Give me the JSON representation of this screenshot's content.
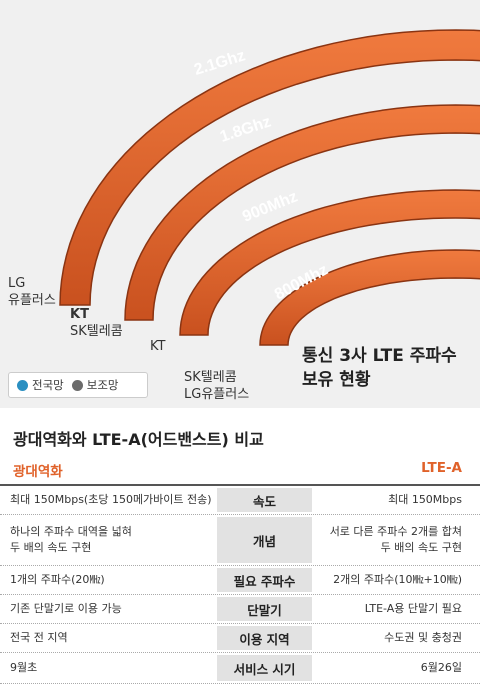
{
  "infographic": {
    "title_line1": "통신 3사 LTE 주파수",
    "title_line2": "보유 현황",
    "bands": [
      {
        "freq": "2.1Ghz",
        "owners": [
          {
            "text": "LG",
            "color": "gray"
          },
          {
            "text": "유플러스",
            "color": "gray"
          }
        ]
      },
      {
        "freq": "1.8Ghz",
        "owners": [
          {
            "text": "KT",
            "color": "blue"
          },
          {
            "text": "SK텔레콤",
            "color": "gray"
          }
        ]
      },
      {
        "freq": "900Mhz",
        "owners": [
          {
            "text": "KT",
            "color": "gray"
          }
        ]
      },
      {
        "freq": "800Mhz",
        "owners": [
          {
            "text": "SK텔레콤",
            "color": "blue"
          },
          {
            "text": "LG유플러스",
            "color": "blue"
          }
        ]
      }
    ],
    "legend": {
      "nationwide": {
        "label": "전국망",
        "color": "#2a8fc1"
      },
      "auxiliary": {
        "label": "보조망",
        "color": "#6b6b6b"
      }
    },
    "arc_color": "#e0622a"
  },
  "comparison": {
    "title": "광대역화와 LTE-A(어드밴스트) 비교",
    "left_header": "광대역화",
    "right_header": "LTE-A",
    "rows": [
      {
        "left": "최대 150Mbps(초당 150메가바이트 전송)",
        "label": "속도",
        "right": "최대 150Mbps"
      },
      {
        "left": "하나의 주파수 대역을 넓혀\n두 배의 속도 구현",
        "label": "개념",
        "right": "서로 다른 주파수 2개를 합쳐\n두 배의 속도 구현"
      },
      {
        "left": "1개의 주파수(20㎒)",
        "label": "필요 주파수",
        "right": "2개의 주파수(10㎒+10㎒)"
      },
      {
        "left": "기존 단말기로 이용 가능",
        "label": "단말기",
        "right": "LTE-A용 단말기 필요"
      },
      {
        "left": "전국 전 지역",
        "label": "이용 지역",
        "right": "수도권 및 충청권"
      },
      {
        "left": "9월초",
        "label": "서비스 시기",
        "right": "6월26일"
      }
    ]
  }
}
